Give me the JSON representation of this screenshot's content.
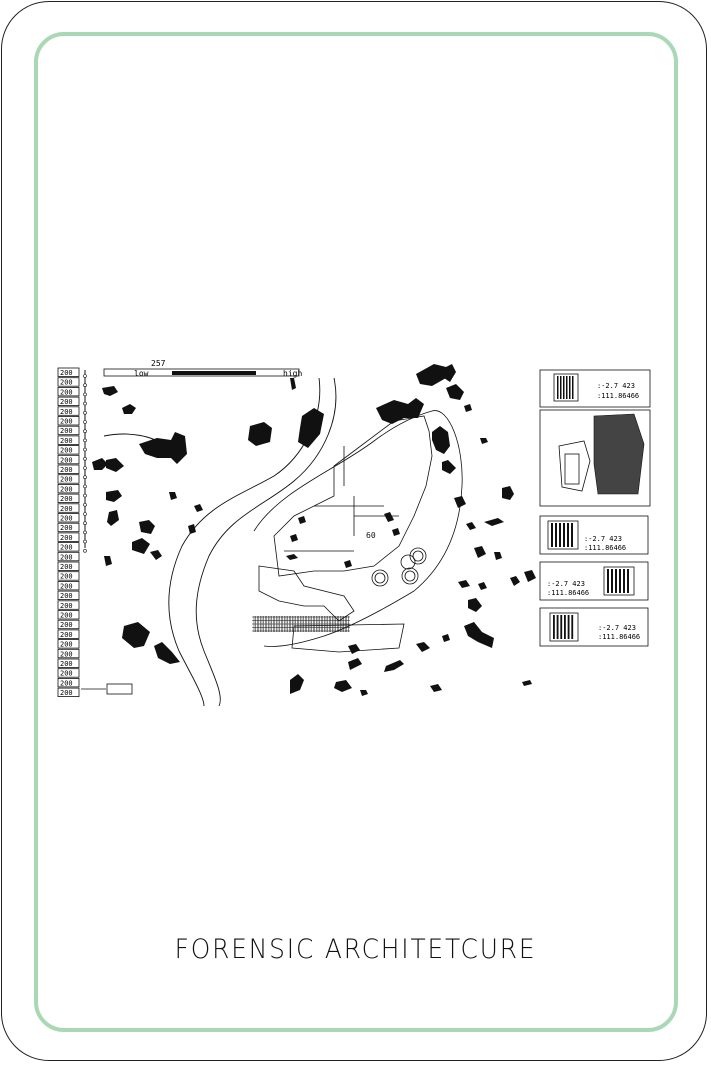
{
  "title": "FORENSIC ARCHITETCURE",
  "legend": {
    "scale_labels": [
      "200",
      "200",
      "200",
      "200",
      "200",
      "200",
      "200",
      "200",
      "200",
      "200",
      "200",
      "200",
      "200",
      "200",
      "200",
      "200",
      "200",
      "200",
      "200",
      "200",
      "200",
      "200",
      "200",
      "200",
      "200",
      "200",
      "200",
      "200",
      "200",
      "200",
      "200",
      "200",
      "200",
      "200"
    ],
    "low_label": "low",
    "high_label": "high",
    "top_value": "257"
  },
  "plan_labels": {
    "label_a": "60"
  },
  "info_panels": [
    {
      "lat": ":-2.7  423",
      "lon": ":111.86466"
    },
    {
      "lat": ":-2.7  423",
      "lon": ":111.86466"
    },
    {
      "lat": ":-2.7  423",
      "lon": ":111.86466"
    },
    {
      "lat": ":-2.7  423",
      "lon": ":111.86466"
    }
  ],
  "colors": {
    "inner_border": "#a9d8b4",
    "ink": "#111111"
  }
}
